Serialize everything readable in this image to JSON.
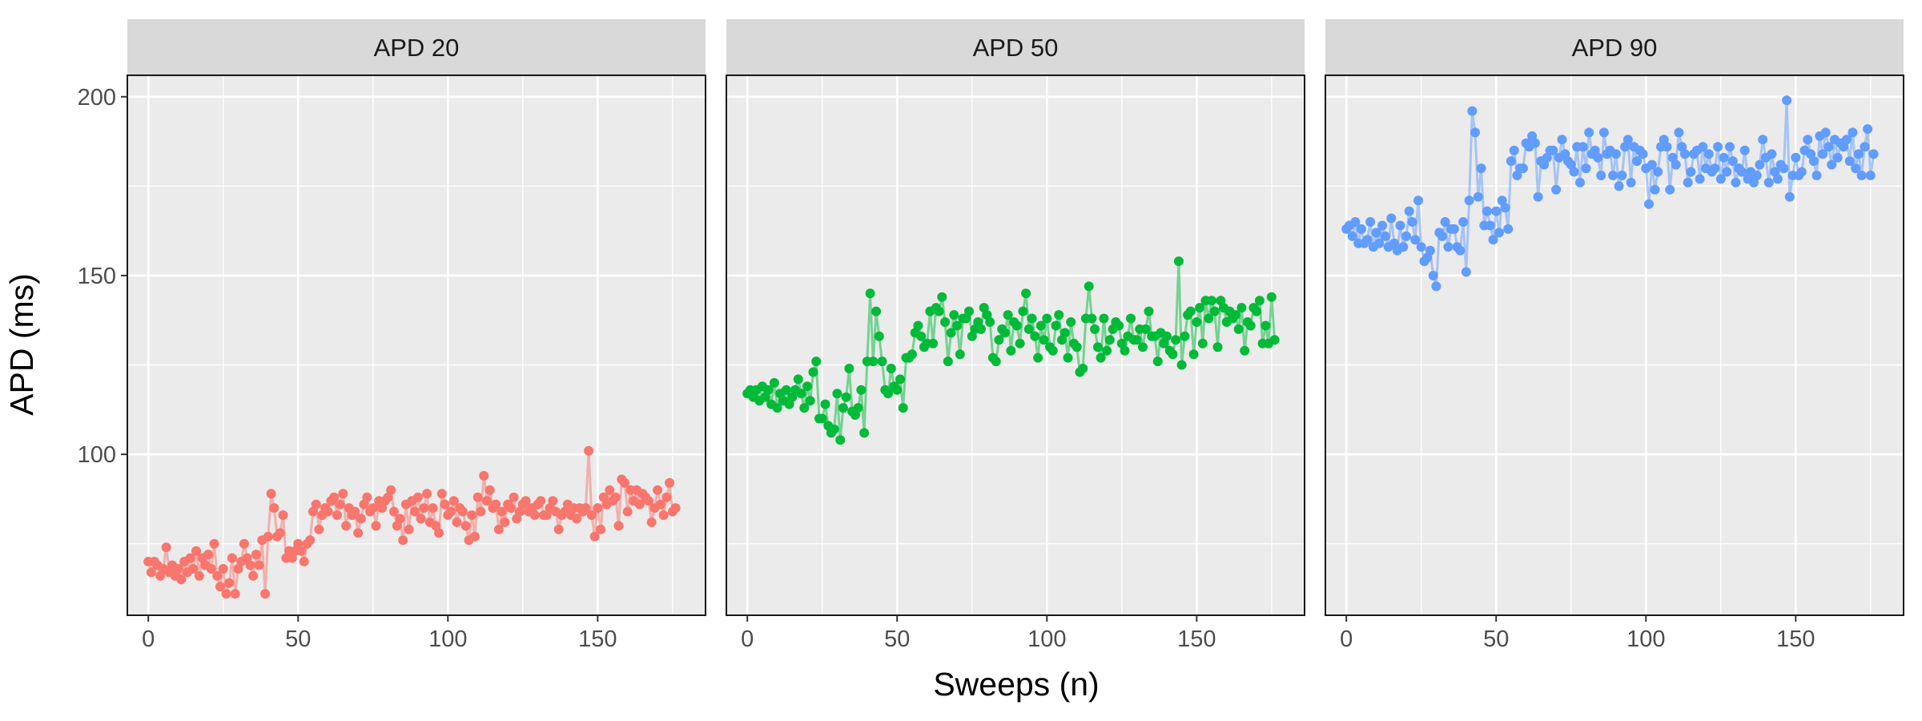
{
  "chart_data": {
    "type": "line",
    "facets": [
      {
        "title": "APD 20",
        "color": "#F8766D",
        "series_index": 0
      },
      {
        "title": "APD 50",
        "color": "#00BA38",
        "series_index": 1
      },
      {
        "title": "APD 90",
        "color": "#619CFF",
        "series_index": 2
      }
    ],
    "xlabel": "Sweeps (n)",
    "ylabel": "APD (ms)",
    "xlim": [
      -7,
      186
    ],
    "ylim": [
      55,
      206
    ],
    "x_ticks": [
      0,
      50,
      100,
      150
    ],
    "y_ticks": [
      100,
      150,
      200
    ],
    "grid": true,
    "legend": "none",
    "x": [
      0,
      1,
      2,
      3,
      4,
      5,
      6,
      7,
      8,
      9,
      10,
      11,
      12,
      13,
      14,
      15,
      16,
      17,
      18,
      19,
      20,
      21,
      22,
      23,
      24,
      25,
      26,
      27,
      28,
      29,
      30,
      31,
      32,
      33,
      34,
      35,
      36,
      37,
      38,
      39,
      40,
      41,
      42,
      43,
      44,
      45,
      46,
      47,
      48,
      49,
      50,
      51,
      52,
      53,
      54,
      55,
      56,
      57,
      58,
      59,
      60,
      61,
      62,
      63,
      64,
      65,
      66,
      67,
      68,
      69,
      70,
      71,
      72,
      73,
      74,
      75,
      76,
      77,
      78,
      79,
      80,
      81,
      82,
      83,
      84,
      85,
      86,
      87,
      88,
      89,
      90,
      91,
      92,
      93,
      94,
      95,
      96,
      97,
      98,
      99,
      100,
      101,
      102,
      103,
      104,
      105,
      106,
      107,
      108,
      109,
      110,
      111,
      112,
      113,
      114,
      115,
      116,
      117,
      118,
      119,
      120,
      121,
      122,
      123,
      124,
      125,
      126,
      127,
      128,
      129,
      130,
      131,
      132,
      133,
      134,
      135,
      136,
      137,
      138,
      139,
      140,
      141,
      142,
      143,
      144,
      145,
      146,
      147,
      148,
      149,
      150,
      151,
      152,
      153,
      154,
      155,
      156,
      157,
      158,
      159,
      160,
      161,
      162,
      163,
      164,
      165,
      166,
      167,
      168,
      169,
      170,
      171,
      172,
      173,
      174,
      175,
      176
    ],
    "series": [
      {
        "name": "APD 20",
        "values": [
          70,
          67,
          70,
          69,
          66,
          68,
          74,
          67,
          69,
          66,
          68,
          65,
          70,
          67,
          71,
          68,
          73,
          66,
          71,
          69,
          72,
          68,
          75,
          66,
          63,
          68,
          61,
          64,
          71,
          61,
          68,
          70,
          75,
          71,
          69,
          66,
          72,
          69,
          76,
          61,
          77,
          89,
          85,
          77,
          78,
          83,
          71,
          73,
          71,
          73,
          75,
          73,
          70,
          75,
          76,
          84,
          86,
          79,
          83,
          85,
          84,
          87,
          88,
          83,
          86,
          89,
          80,
          85,
          83,
          84,
          78,
          82,
          86,
          88,
          84,
          85,
          80,
          87,
          85,
          87,
          88,
          90,
          84,
          80,
          82,
          76,
          86,
          79,
          87,
          84,
          88,
          82,
          85,
          89,
          81,
          85,
          80,
          78,
          89,
          86,
          83,
          84,
          87,
          81,
          85,
          84,
          80,
          76,
          83,
          77,
          88,
          84,
          94,
          87,
          90,
          85,
          86,
          79,
          84,
          81,
          86,
          85,
          88,
          82,
          84,
          86,
          87,
          84,
          85,
          83,
          86,
          87,
          83,
          83,
          85,
          87,
          84,
          79,
          83,
          84,
          86,
          83,
          85,
          82,
          85,
          84,
          85,
          101,
          83,
          77,
          85,
          79,
          88,
          86,
          90,
          87,
          88,
          80,
          93,
          92,
          84,
          90,
          87,
          90,
          86,
          89,
          88,
          87,
          81,
          85,
          90,
          86,
          83,
          88,
          92,
          84,
          85
        ]
      },
      {
        "name": "APD 50",
        "values": [
          117,
          118,
          116,
          118,
          115,
          119,
          116,
          118,
          114,
          120,
          113,
          117,
          115,
          118,
          114,
          116,
          118,
          121,
          117,
          113,
          119,
          115,
          123,
          126,
          110,
          110,
          114,
          108,
          106,
          107,
          117,
          104,
          113,
          116,
          124,
          112,
          111,
          113,
          118,
          106,
          126,
          145,
          126,
          140,
          133,
          126,
          118,
          117,
          124,
          119,
          118,
          121,
          113,
          127,
          127,
          128,
          134,
          136,
          133,
          130,
          131,
          140,
          131,
          141,
          140,
          144,
          137,
          126,
          134,
          139,
          136,
          128,
          138,
          138,
          140,
          133,
          135,
          137,
          135,
          141,
          139,
          137,
          127,
          126,
          132,
          135,
          134,
          139,
          129,
          137,
          136,
          131,
          140,
          145,
          135,
          138,
          133,
          127,
          136,
          132,
          138,
          130,
          129,
          136,
          139,
          132,
          134,
          127,
          137,
          131,
          130,
          123,
          124,
          138,
          147,
          138,
          135,
          130,
          127,
          138,
          129,
          132,
          135,
          137,
          136,
          131,
          129,
          133,
          138,
          132,
          132,
          135,
          130,
          135,
          140,
          133,
          133,
          126,
          134,
          131,
          133,
          129,
          128,
          132,
          154,
          125,
          133,
          139,
          140,
          128,
          137,
          141,
          131,
          143,
          138,
          143,
          140,
          130,
          143,
          141,
          137,
          140,
          138,
          139,
          135,
          141,
          129,
          137,
          136,
          141,
          140,
          143,
          131,
          136,
          131,
          144,
          132
        ]
      },
      {
        "name": "APD 90",
        "values": [
          163,
          164,
          161,
          165,
          159,
          163,
          159,
          160,
          165,
          158,
          162,
          159,
          164,
          161,
          158,
          166,
          159,
          157,
          164,
          158,
          161,
          168,
          165,
          160,
          171,
          158,
          154,
          155,
          157,
          150,
          147,
          162,
          161,
          165,
          158,
          163,
          163,
          158,
          157,
          165,
          151,
          171,
          196,
          190,
          172,
          180,
          164,
          168,
          164,
          160,
          168,
          162,
          171,
          169,
          163,
          182,
          185,
          178,
          180,
          180,
          187,
          186,
          189,
          187,
          172,
          182,
          181,
          183,
          185,
          185,
          174,
          183,
          188,
          184,
          182,
          181,
          179,
          186,
          176,
          186,
          180,
          190,
          184,
          185,
          183,
          178,
          190,
          184,
          185,
          178,
          184,
          175,
          178,
          186,
          188,
          176,
          186,
          182,
          185,
          184,
          180,
          170,
          181,
          174,
          179,
          186,
          188,
          186,
          174,
          183,
          181,
          190,
          186,
          184,
          176,
          179,
          184,
          185,
          177,
          186,
          180,
          184,
          179,
          180,
          186,
          177,
          183,
          179,
          186,
          182,
          176,
          180,
          179,
          185,
          177,
          179,
          176,
          178,
          181,
          188,
          183,
          176,
          184,
          179,
          177,
          181,
          180,
          199,
          172,
          178,
          183,
          178,
          179,
          185,
          188,
          184,
          182,
          178,
          189,
          184,
          190,
          186,
          181,
          188,
          183,
          187,
          186,
          188,
          182,
          190,
          180,
          184,
          178,
          186,
          191,
          178,
          184
        ]
      }
    ]
  }
}
